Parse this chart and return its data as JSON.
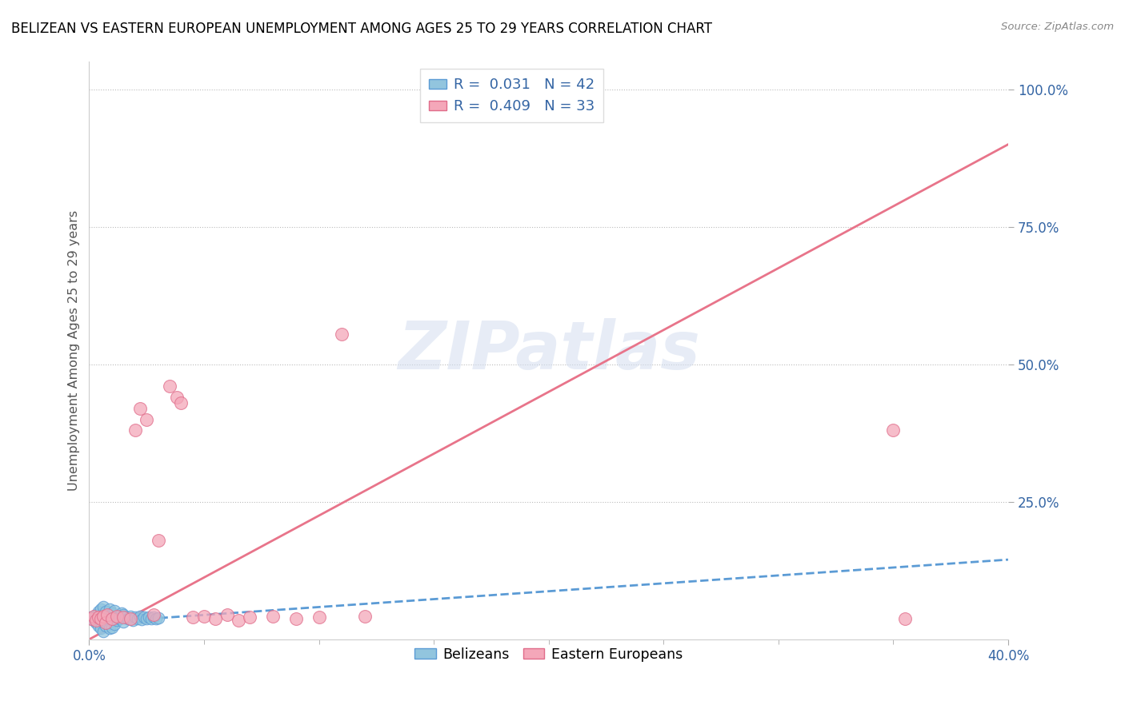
{
  "title": "BELIZEAN VS EASTERN EUROPEAN UNEMPLOYMENT AMONG AGES 25 TO 29 YEARS CORRELATION CHART",
  "source": "Source: ZipAtlas.com",
  "xlim": [
    0.0,
    0.4
  ],
  "ylim": [
    0.0,
    1.05
  ],
  "belizean_color": "#92C5DE",
  "belizean_edge_color": "#5B9BD5",
  "eastern_color": "#F4A7B9",
  "eastern_edge_color": "#E06C8A",
  "belizean_line_color": "#5B9BD5",
  "eastern_line_color": "#E8748A",
  "R_belizean": 0.031,
  "N_belizean": 42,
  "R_eastern": 0.409,
  "N_eastern": 33,
  "watermark": "ZIPatlas",
  "legend_color": "#3465A4",
  "bel_x": [
    0.001,
    0.002,
    0.003,
    0.003,
    0.004,
    0.004,
    0.005,
    0.005,
    0.006,
    0.006,
    0.007,
    0.007,
    0.008,
    0.008,
    0.009,
    0.009,
    0.01,
    0.01,
    0.011,
    0.011,
    0.012,
    0.012,
    0.013,
    0.013,
    0.014,
    0.015,
    0.015,
    0.016,
    0.017,
    0.018,
    0.019,
    0.02,
    0.021,
    0.022,
    0.023,
    0.024,
    0.025,
    0.026,
    0.027,
    0.028,
    0.029,
    0.03
  ],
  "bel_y": [
    0.04,
    0.035,
    0.045,
    0.03,
    0.05,
    0.025,
    0.055,
    0.02,
    0.06,
    0.015,
    0.05,
    0.025,
    0.045,
    0.03,
    0.055,
    0.02,
    0.048,
    0.022,
    0.052,
    0.028,
    0.04,
    0.035,
    0.042,
    0.038,
    0.048,
    0.032,
    0.045,
    0.04,
    0.038,
    0.042,
    0.035,
    0.04,
    0.038,
    0.042,
    0.036,
    0.04,
    0.038,
    0.041,
    0.037,
    0.04,
    0.038,
    0.039
  ],
  "east_x": [
    0.001,
    0.002,
    0.003,
    0.004,
    0.005,
    0.006,
    0.007,
    0.008,
    0.01,
    0.012,
    0.015,
    0.018,
    0.02,
    0.022,
    0.025,
    0.028,
    0.03,
    0.035,
    0.038,
    0.04,
    0.045,
    0.05,
    0.055,
    0.06,
    0.065,
    0.07,
    0.08,
    0.09,
    0.1,
    0.11,
    0.12,
    0.35,
    0.355
  ],
  "east_y": [
    0.038,
    0.042,
    0.035,
    0.04,
    0.038,
    0.042,
    0.03,
    0.045,
    0.038,
    0.042,
    0.04,
    0.038,
    0.38,
    0.42,
    0.4,
    0.045,
    0.18,
    0.46,
    0.44,
    0.43,
    0.04,
    0.042,
    0.038,
    0.045,
    0.035,
    0.04,
    0.042,
    0.038,
    0.04,
    0.555,
    0.042,
    0.38,
    0.038
  ],
  "east_line_x0": 0.0,
  "east_line_y0": 0.0,
  "east_line_x1": 0.4,
  "east_line_y1": 0.9,
  "bel_line_x0": 0.0,
  "bel_line_y0": 0.03,
  "bel_line_x1": 0.4,
  "bel_line_y1": 0.145
}
